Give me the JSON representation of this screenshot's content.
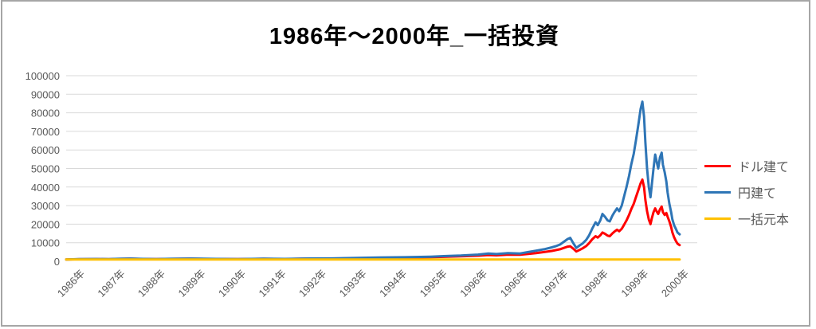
{
  "chart_data": {
    "type": "line",
    "title": "1986年〜2000年_一括投資",
    "grid": true,
    "grid_color": "#d9d9d9",
    "tick_color": "#595959",
    "legend_position": "right",
    "ylim": [
      0,
      100000
    ],
    "yticks": [
      0,
      10000,
      20000,
      30000,
      40000,
      50000,
      60000,
      70000,
      80000,
      90000,
      100000
    ],
    "xlim": [
      1986,
      2000.71
    ],
    "xticks": [
      "1986年",
      "1987年",
      "1988年",
      "1989年",
      "1990年",
      "1991年",
      "1992年",
      "1993年",
      "1994年",
      "1995年",
      "1996年",
      "1996年",
      "1997年",
      "1998年",
      "1999年",
      "2000年"
    ],
    "series": [
      {
        "name": "ドル建て",
        "color": "#ff0000",
        "width": 3,
        "points": [
          [
            1986.0,
            1000
          ],
          [
            1986.3,
            1100
          ],
          [
            1986.7,
            1200
          ],
          [
            1987.0,
            1100
          ],
          [
            1987.2,
            1300
          ],
          [
            1987.5,
            1380
          ],
          [
            1987.8,
            1250
          ],
          [
            1988.1,
            1150
          ],
          [
            1988.4,
            1280
          ],
          [
            1988.9,
            1380
          ],
          [
            1989.5,
            1250
          ],
          [
            1990.0,
            1150
          ],
          [
            1990.6,
            1330
          ],
          [
            1991.1,
            1250
          ],
          [
            1991.7,
            1400
          ],
          [
            1992.2,
            1450
          ],
          [
            1992.8,
            1650
          ],
          [
            1993.3,
            1800
          ],
          [
            1993.9,
            2000
          ],
          [
            1994.5,
            2200
          ],
          [
            1994.8,
            2400
          ],
          [
            1995.2,
            2700
          ],
          [
            1995.6,
            3000
          ],
          [
            1995.84,
            3400
          ],
          [
            1996.03,
            3200
          ],
          [
            1996.3,
            3600
          ],
          [
            1996.58,
            3500
          ],
          [
            1996.77,
            4000
          ],
          [
            1996.95,
            4400
          ],
          [
            1997.14,
            5000
          ],
          [
            1997.32,
            5600
          ],
          [
            1997.41,
            6000
          ],
          [
            1997.51,
            6500
          ],
          [
            1997.6,
            7200
          ],
          [
            1997.69,
            7900
          ],
          [
            1997.75,
            8100
          ],
          [
            1997.82,
            6800
          ],
          [
            1997.89,
            5300
          ],
          [
            1997.97,
            6200
          ],
          [
            1998.04,
            7000
          ],
          [
            1998.12,
            8200
          ],
          [
            1998.19,
            9800
          ],
          [
            1998.26,
            11800
          ],
          [
            1998.34,
            13500
          ],
          [
            1998.39,
            12800
          ],
          [
            1998.45,
            14000
          ],
          [
            1998.5,
            15500
          ],
          [
            1998.56,
            14800
          ],
          [
            1998.62,
            13800
          ],
          [
            1998.67,
            13500
          ],
          [
            1998.73,
            15000
          ],
          [
            1998.78,
            16000
          ],
          [
            1998.84,
            17000
          ],
          [
            1998.89,
            16200
          ],
          [
            1998.95,
            17500
          ],
          [
            1999.0,
            19500
          ],
          [
            1999.06,
            22000
          ],
          [
            1999.12,
            25000
          ],
          [
            1999.17,
            28000
          ],
          [
            1999.23,
            31000
          ],
          [
            1999.28,
            34500
          ],
          [
            1999.34,
            38500
          ],
          [
            1999.39,
            42000
          ],
          [
            1999.43,
            44000
          ],
          [
            1999.47,
            40000
          ],
          [
            1999.5,
            33000
          ],
          [
            1999.54,
            27000
          ],
          [
            1999.58,
            22500
          ],
          [
            1999.62,
            20000
          ],
          [
            1999.65,
            23000
          ],
          [
            1999.69,
            26500
          ],
          [
            1999.73,
            28500
          ],
          [
            1999.76,
            27000
          ],
          [
            1999.8,
            25500
          ],
          [
            1999.84,
            28000
          ],
          [
            1999.88,
            29500
          ],
          [
            1999.91,
            26500
          ],
          [
            1999.95,
            25000
          ],
          [
            1999.99,
            26000
          ],
          [
            2000.02,
            24000
          ],
          [
            2000.06,
            21500
          ],
          [
            2000.1,
            18500
          ],
          [
            2000.13,
            15500
          ],
          [
            2000.17,
            13000
          ],
          [
            2000.21,
            11000
          ],
          [
            2000.25,
            9500
          ],
          [
            2000.3,
            8700
          ]
        ]
      },
      {
        "name": "円建て",
        "color": "#2e75b6",
        "width": 3,
        "points": [
          [
            1986.0,
            1000
          ],
          [
            1986.3,
            1150
          ],
          [
            1986.7,
            1250
          ],
          [
            1987.0,
            1150
          ],
          [
            1987.2,
            1350
          ],
          [
            1987.5,
            1450
          ],
          [
            1987.8,
            1300
          ],
          [
            1988.1,
            1200
          ],
          [
            1988.4,
            1350
          ],
          [
            1988.9,
            1450
          ],
          [
            1989.5,
            1300
          ],
          [
            1990.0,
            1200
          ],
          [
            1990.6,
            1400
          ],
          [
            1991.1,
            1300
          ],
          [
            1991.7,
            1500
          ],
          [
            1992.2,
            1550
          ],
          [
            1992.8,
            1800
          ],
          [
            1993.3,
            2000
          ],
          [
            1993.9,
            2200
          ],
          [
            1994.5,
            2500
          ],
          [
            1994.8,
            2800
          ],
          [
            1995.2,
            3100
          ],
          [
            1995.6,
            3600
          ],
          [
            1995.84,
            4200
          ],
          [
            1996.03,
            3900
          ],
          [
            1996.3,
            4400
          ],
          [
            1996.58,
            4200
          ],
          [
            1996.77,
            5000
          ],
          [
            1996.95,
            5700
          ],
          [
            1997.14,
            6500
          ],
          [
            1997.32,
            7500
          ],
          [
            1997.41,
            8100
          ],
          [
            1997.51,
            9000
          ],
          [
            1997.6,
            10500
          ],
          [
            1997.69,
            12000
          ],
          [
            1997.75,
            12600
          ],
          [
            1997.82,
            9800
          ],
          [
            1997.89,
            7200
          ],
          [
            1997.97,
            8600
          ],
          [
            1998.04,
            9600
          ],
          [
            1998.12,
            11500
          ],
          [
            1998.19,
            14000
          ],
          [
            1998.26,
            17500
          ],
          [
            1998.34,
            21000
          ],
          [
            1998.39,
            19500
          ],
          [
            1998.45,
            22000
          ],
          [
            1998.5,
            25500
          ],
          [
            1998.56,
            24000
          ],
          [
            1998.62,
            22000
          ],
          [
            1998.67,
            21500
          ],
          [
            1998.73,
            24500
          ],
          [
            1998.78,
            26500
          ],
          [
            1998.84,
            28500
          ],
          [
            1998.89,
            27000
          ],
          [
            1998.95,
            30000
          ],
          [
            1999.0,
            34500
          ],
          [
            1999.06,
            40000
          ],
          [
            1999.12,
            46000
          ],
          [
            1999.17,
            52000
          ],
          [
            1999.23,
            58000
          ],
          [
            1999.28,
            65000
          ],
          [
            1999.34,
            74000
          ],
          [
            1999.39,
            82000
          ],
          [
            1999.43,
            86000
          ],
          [
            1999.47,
            78000
          ],
          [
            1999.5,
            64000
          ],
          [
            1999.54,
            50000
          ],
          [
            1999.58,
            40000
          ],
          [
            1999.62,
            34500
          ],
          [
            1999.65,
            41000
          ],
          [
            1999.69,
            50000
          ],
          [
            1999.73,
            57500
          ],
          [
            1999.76,
            54000
          ],
          [
            1999.8,
            50000
          ],
          [
            1999.84,
            56000
          ],
          [
            1999.88,
            58500
          ],
          [
            1999.91,
            52000
          ],
          [
            1999.95,
            48000
          ],
          [
            1999.99,
            43000
          ],
          [
            2000.02,
            37000
          ],
          [
            2000.06,
            31000
          ],
          [
            2000.1,
            26500
          ],
          [
            2000.13,
            22500
          ],
          [
            2000.17,
            19500
          ],
          [
            2000.21,
            17500
          ],
          [
            2000.25,
            15500
          ],
          [
            2000.3,
            14500
          ]
        ]
      },
      {
        "name": "一括元本",
        "color": "#ffc000",
        "width": 3,
        "points": [
          [
            1986.0,
            1000
          ],
          [
            2000.3,
            1000
          ]
        ]
      }
    ]
  },
  "legend": {
    "items": [
      {
        "label": "ドル建て"
      },
      {
        "label": "円建て"
      },
      {
        "label": "一括元本"
      }
    ]
  }
}
